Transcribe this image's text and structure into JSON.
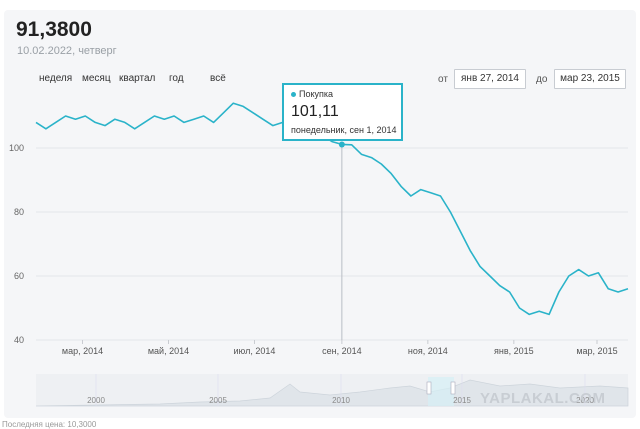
{
  "header": {
    "value": "91,3800",
    "date": "10.02.2022",
    "weekday": "четверг"
  },
  "periods": [
    "неделя",
    "месяц",
    "квартал",
    "год",
    "всё"
  ],
  "range": {
    "from_label": "от",
    "from": "янв 27, 2014",
    "to_label": "до",
    "to": "мар 23, 2015"
  },
  "tooltip": {
    "series": "Покупка",
    "value": "101,11",
    "date": "понедельник, сен 1, 2014"
  },
  "navigator": {
    "ticks": [
      "2000",
      "2005",
      "2010",
      "2015",
      "2020"
    ]
  },
  "watermark": "YAPLAKAL.COM",
  "footer": "Последняя цена: 10,3000",
  "colors": {
    "line": "#2ab3c9",
    "grid": "#e4e6ea",
    "navigator_fill": "#e3e8ed"
  },
  "chart_data": {
    "type": "line",
    "x_range": [
      "2014-01-27",
      "2015-03-23"
    ],
    "ylim": [
      40,
      115
    ],
    "yticks": [
      40,
      60,
      80,
      100
    ],
    "xticks": [
      {
        "label": "мар, 2014",
        "date": "2014-03-01"
      },
      {
        "label": "май, 2014",
        "date": "2014-05-01"
      },
      {
        "label": "июл, 2014",
        "date": "2014-07-01"
      },
      {
        "label": "сен, 2014",
        "date": "2014-09-01"
      },
      {
        "label": "ноя, 2014",
        "date": "2014-11-01"
      },
      {
        "label": "янв, 2015",
        "date": "2015-01-01"
      },
      {
        "label": "мар, 2015",
        "date": "2015-03-01"
      }
    ],
    "series": [
      {
        "points": [
          [
            "2014-01-27",
            108
          ],
          [
            "2014-02-03",
            106
          ],
          [
            "2014-02-10",
            108
          ],
          [
            "2014-02-17",
            110
          ],
          [
            "2014-02-24",
            109
          ],
          [
            "2014-03-03",
            110
          ],
          [
            "2014-03-10",
            108
          ],
          [
            "2014-03-17",
            107
          ],
          [
            "2014-03-24",
            109
          ],
          [
            "2014-03-31",
            108
          ],
          [
            "2014-04-07",
            106
          ],
          [
            "2014-04-14",
            108
          ],
          [
            "2014-04-21",
            110
          ],
          [
            "2014-04-28",
            109
          ],
          [
            "2014-05-05",
            110
          ],
          [
            "2014-05-12",
            108
          ],
          [
            "2014-05-19",
            109
          ],
          [
            "2014-05-26",
            110
          ],
          [
            "2014-06-02",
            108
          ],
          [
            "2014-06-09",
            111
          ],
          [
            "2014-06-16",
            114
          ],
          [
            "2014-06-23",
            113
          ],
          [
            "2014-06-30",
            111
          ],
          [
            "2014-07-07",
            109
          ],
          [
            "2014-07-14",
            107
          ],
          [
            "2014-07-21",
            108
          ],
          [
            "2014-07-28",
            106
          ],
          [
            "2014-08-04",
            108
          ],
          [
            "2014-08-11",
            106
          ],
          [
            "2014-08-18",
            104
          ],
          [
            "2014-08-25",
            102
          ],
          [
            "2014-09-01",
            101.11
          ],
          [
            "2014-09-08",
            101
          ],
          [
            "2014-09-15",
            98
          ],
          [
            "2014-09-22",
            97
          ],
          [
            "2014-09-29",
            95
          ],
          [
            "2014-10-06",
            92
          ],
          [
            "2014-10-13",
            88
          ],
          [
            "2014-10-20",
            85
          ],
          [
            "2014-10-27",
            87
          ],
          [
            "2014-11-03",
            86
          ],
          [
            "2014-11-10",
            85
          ],
          [
            "2014-11-17",
            80
          ],
          [
            "2014-11-24",
            74
          ],
          [
            "2014-12-01",
            68
          ],
          [
            "2014-12-08",
            63
          ],
          [
            "2014-12-15",
            60
          ],
          [
            "2014-12-22",
            57
          ],
          [
            "2014-12-29",
            55
          ],
          [
            "2015-01-05",
            50
          ],
          [
            "2015-01-12",
            48
          ],
          [
            "2015-01-19",
            49
          ],
          [
            "2015-01-26",
            48
          ],
          [
            "2015-02-02",
            55
          ],
          [
            "2015-02-09",
            60
          ],
          [
            "2015-02-16",
            62
          ],
          [
            "2015-02-23",
            60
          ],
          [
            "2015-03-02",
            61
          ],
          [
            "2015-03-09",
            56
          ],
          [
            "2015-03-16",
            55
          ],
          [
            "2015-03-23",
            56
          ]
        ]
      }
    ]
  }
}
